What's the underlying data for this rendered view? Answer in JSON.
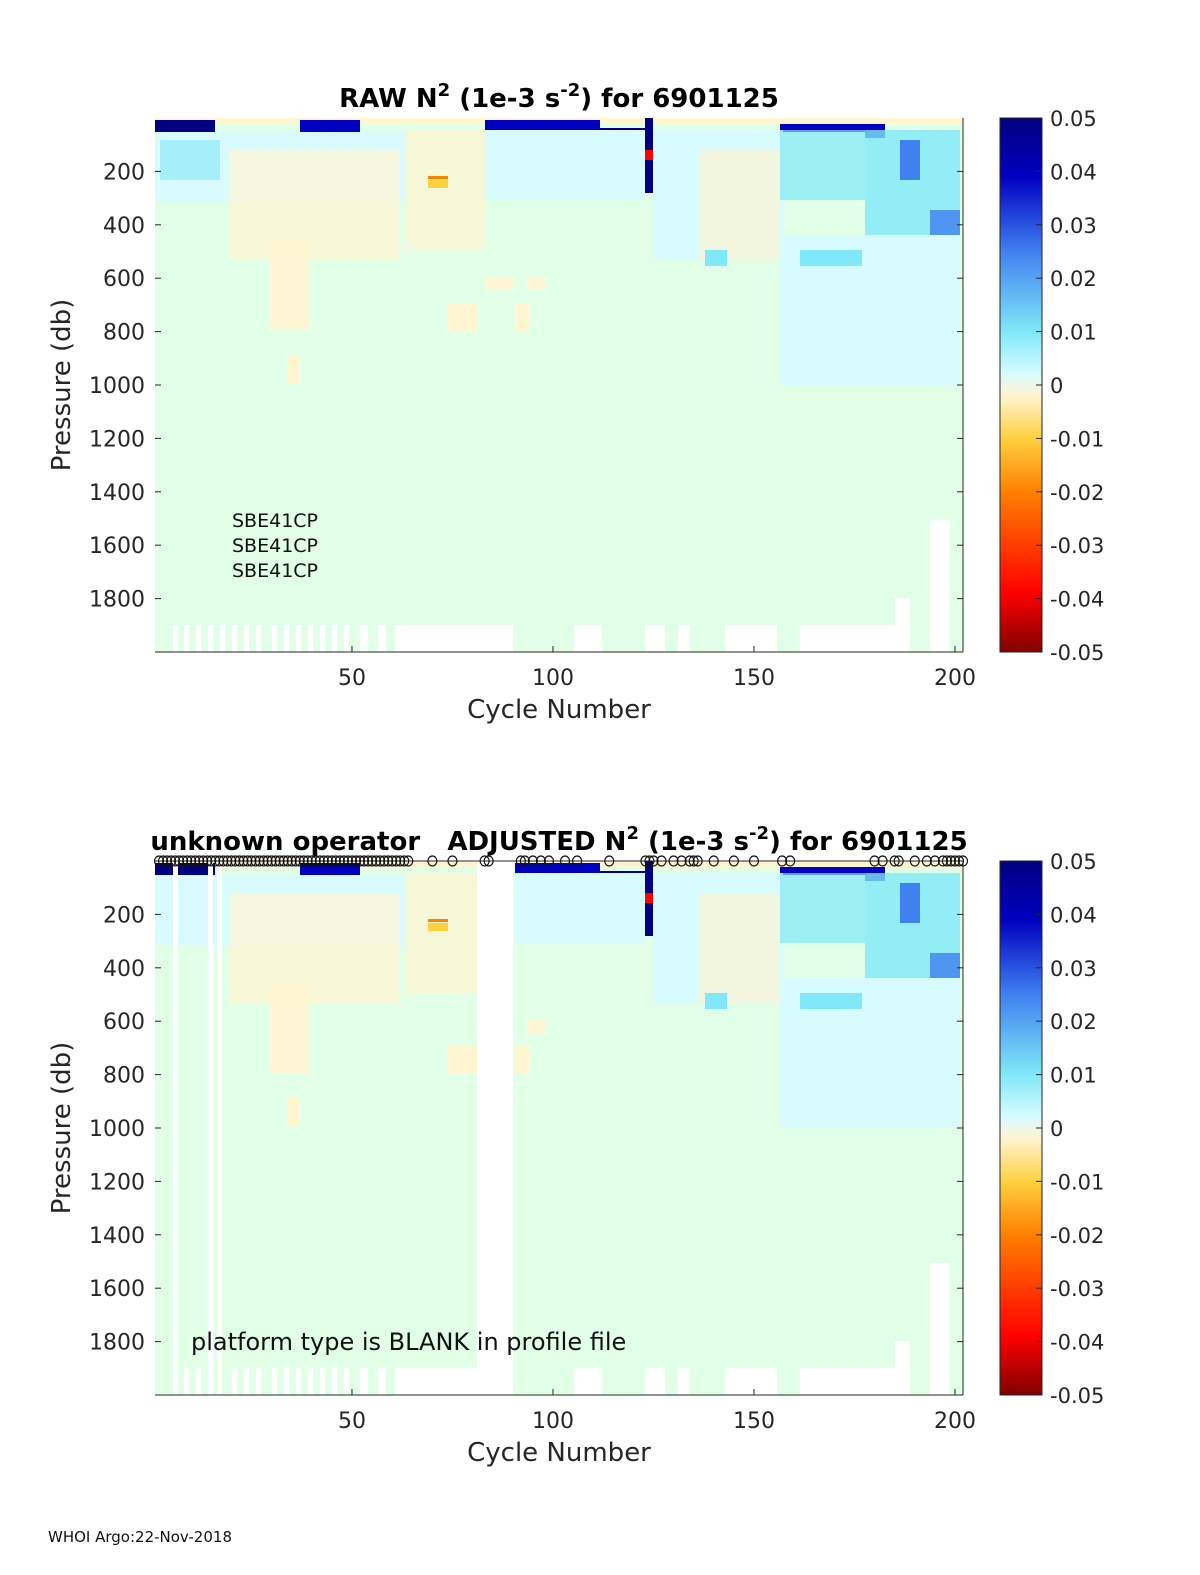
{
  "footer": "WHOI Argo:22-Nov-2018",
  "colors": {
    "background_fill": "#e0ffe6",
    "colormap": [
      "#7f0000",
      "#ff0000",
      "#ff8000",
      "#ffd040",
      "#fff4d0",
      "#d8fbff",
      "#80e8f8",
      "#4080f0",
      "#0000c0",
      "#00007f"
    ]
  },
  "chart_data": [
    {
      "type": "heatmap",
      "title_main": "RAW N",
      "title_sup": "2",
      "title_mid": " (1e-3 s",
      "title_sup2": "-2",
      "title_end": ") for 6901125",
      "xlabel": "Cycle Number",
      "ylabel": "Pressure (db)",
      "xlim": [
        1,
        202
      ],
      "ylim": [
        0,
        2000
      ],
      "y_reversed": true,
      "x_ticks": [
        50,
        100,
        150,
        200
      ],
      "x_tick_labels": [
        "50",
        "100",
        "150",
        "200"
      ],
      "y_ticks": [
        200,
        400,
        600,
        800,
        1000,
        1200,
        1400,
        1600,
        1800
      ],
      "y_tick_labels": [
        "200",
        "400",
        "600",
        "800",
        "1000",
        "1200",
        "1400",
        "1600",
        "1800"
      ],
      "colorbar": {
        "range": [
          -0.05,
          0.05
        ],
        "ticks": [
          0.05,
          0.04,
          0.03,
          0.02,
          0.01,
          0,
          -0.01,
          -0.02,
          -0.03,
          -0.04,
          -0.05
        ],
        "tick_labels": [
          "0.05",
          "0.04",
          "0.03",
          "0.02",
          "0.01",
          "0",
          "-0.01",
          "-0.02",
          "-0.03",
          "-0.04",
          "-0.05"
        ]
      },
      "annotations": [
        "SBE41CP",
        "SBE41CP",
        "SBE41CP"
      ]
    },
    {
      "type": "heatmap",
      "title_main": "unknown operator   ADJUSTED N",
      "title_sup": "2",
      "title_mid": " (1e-3 s",
      "title_sup2": "-2",
      "title_end": ") for 6901125",
      "xlabel": "Cycle Number",
      "ylabel": "Pressure (db)",
      "xlim": [
        1,
        202
      ],
      "ylim": [
        0,
        2000
      ],
      "y_reversed": true,
      "x_ticks": [
        50,
        100,
        150,
        200
      ],
      "x_tick_labels": [
        "50",
        "100",
        "150",
        "200"
      ],
      "y_ticks": [
        200,
        400,
        600,
        800,
        1000,
        1200,
        1400,
        1600,
        1800
      ],
      "y_tick_labels": [
        "200",
        "400",
        "600",
        "800",
        "1000",
        "1200",
        "1400",
        "1600",
        "1800"
      ],
      "colorbar": {
        "range": [
          -0.05,
          0.05
        ],
        "ticks": [
          0.05,
          0.04,
          0.03,
          0.02,
          0.01,
          0,
          -0.01,
          -0.02,
          -0.03,
          -0.04,
          -0.05
        ],
        "tick_labels": [
          "0.05",
          "0.04",
          "0.03",
          "0.02",
          "0.01",
          "0",
          "-0.01",
          "-0.02",
          "-0.03",
          "-0.04",
          "-0.05"
        ]
      },
      "annotations": [
        "platform type is BLANK in profile file"
      ],
      "adjusted_cycle_markers": [
        2,
        3,
        4,
        5,
        6,
        7,
        8,
        9,
        10,
        11,
        12,
        13,
        14,
        15,
        16,
        17,
        18,
        19,
        20,
        21,
        22,
        23,
        24,
        25,
        26,
        27,
        28,
        29,
        30,
        31,
        32,
        33,
        34,
        35,
        36,
        37,
        38,
        39,
        40,
        41,
        42,
        43,
        44,
        45,
        46,
        47,
        48,
        49,
        50,
        51,
        52,
        53,
        54,
        55,
        56,
        57,
        58,
        59,
        60,
        61,
        62,
        63,
        64,
        70,
        75,
        83,
        84,
        92,
        93,
        95,
        97,
        99,
        103,
        106,
        114,
        123,
        124,
        125,
        127,
        130,
        132,
        134,
        135,
        136,
        140,
        145,
        150,
        157,
        159,
        180,
        182,
        185,
        186,
        190,
        193,
        195,
        197,
        198,
        199,
        200,
        201,
        202
      ]
    }
  ]
}
